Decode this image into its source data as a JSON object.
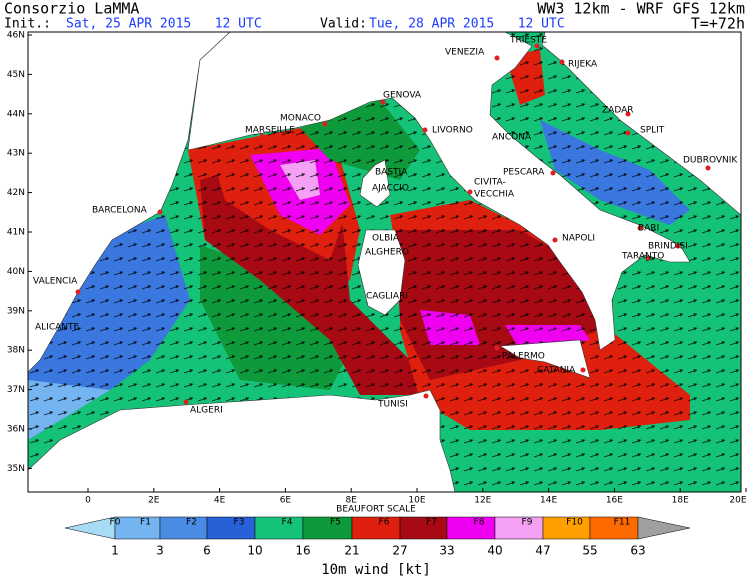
{
  "header": {
    "title": "Consorzio LaMMA",
    "init_label": "Init.:",
    "init_value": "Sat, 25 APR 2015   12 UTC",
    "valid_label": "Valid:",
    "valid_value": "Tue, 28 APR 2015   12 UTC",
    "model": "WW3 12km - WRF GFS 12km",
    "lead": "T=+72h"
  },
  "map": {
    "lat_labels": [
      "46N",
      "45N",
      "44N",
      "43N",
      "42N",
      "41N",
      "40N",
      "39N",
      "38N",
      "37N",
      "36N",
      "35N"
    ],
    "lon_labels": [
      "0",
      "2E",
      "4E",
      "6E",
      "8E",
      "10E",
      "12E",
      "14E",
      "16E",
      "18E",
      "20E"
    ],
    "cities": [
      "TRIESTE",
      "VENEZIA",
      "RIJEKA",
      "GENOVA",
      "MONACO",
      "MARSEILLE",
      "LIVORNO",
      "ANCONA",
      "ZADAR",
      "SPLIT",
      "DUBROVNIK",
      "BASTIA",
      "AJACCIO",
      "PESCARA",
      "CIVITA-",
      "VECCHIA",
      "BARCELONA",
      "OLBIA",
      "ALGHERO",
      "NAPOLI",
      "BARI",
      "BRINDISI",
      "TARANTO",
      "VALENCIA",
      "CAGLIARI",
      "ALICANTE",
      "PALERMO",
      "CATANIA",
      "TUNISI",
      "ALGERI"
    ]
  },
  "legend": {
    "title": "BEAUFORT SCALE",
    "forces": [
      "F0",
      "F1",
      "F2",
      "F3",
      "F4",
      "F5",
      "F6",
      "F7",
      "F8",
      "F9",
      "F10",
      "F11"
    ],
    "values": [
      1,
      3,
      6,
      10,
      16,
      21,
      27,
      33,
      40,
      47,
      55,
      63
    ],
    "caption": "10m wind [kt]"
  }
}
